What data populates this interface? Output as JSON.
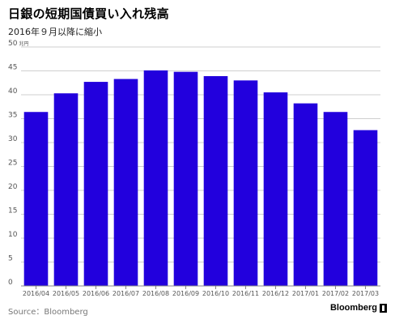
{
  "header": {
    "title": "日銀の短期国債買い入れ残高",
    "subtitle": "2016年９月以降に縮小"
  },
  "footer": {
    "source": "Source：Bloomberg",
    "brand": "Bloomberg"
  },
  "colors": {
    "bar": "#2200dd",
    "grid": "#cfcfcf",
    "axis_text": "#555555"
  },
  "chart_data": {
    "type": "bar",
    "title": "日銀の短期国債買い入れ残高",
    "subtitle": "2016年９月以降に縮小",
    "unit_label": "兆円",
    "categories": [
      "2016/04",
      "2016/05",
      "2016/06",
      "2016/07",
      "2016/08",
      "2016/09",
      "2016/10",
      "2016/11",
      "2016/12",
      "2017/01",
      "2017/02",
      "2017/03"
    ],
    "values": [
      36.4,
      40.3,
      42.7,
      43.3,
      45.1,
      44.8,
      43.9,
      43.0,
      40.5,
      38.2,
      36.4,
      32.6
    ],
    "yticks": [
      0,
      5,
      10,
      15,
      20,
      25,
      30,
      35,
      40,
      45,
      50
    ],
    "ylim": [
      0,
      50
    ],
    "grid": true,
    "legend": "none"
  }
}
